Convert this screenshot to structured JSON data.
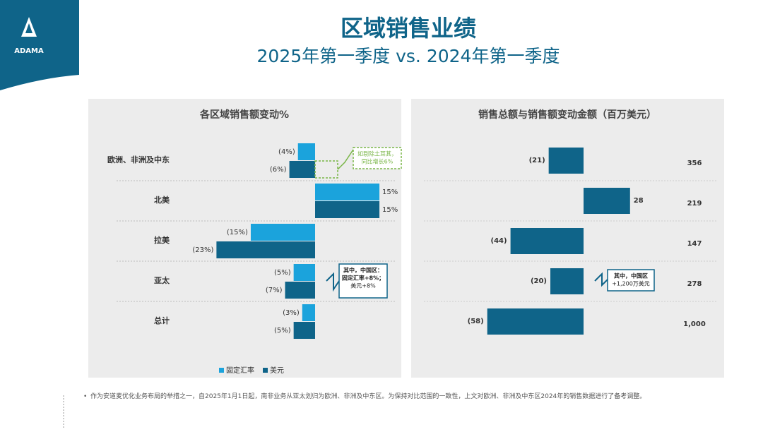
{
  "logo": "ADAMA",
  "header": {
    "title": "区域销售业绩",
    "subtitle": "2025年第一季度 vs. 2024年第一季度"
  },
  "footnote": "作为安道麦优化业务布局的举措之一，自2025年1月1日起，南非业务从亚太划归为欧洲、非洲及中东区。为保持对比范围的一致性，上文对欧洲、非洲及中东区2024年的销售数据进行了备考调整。",
  "chart_data": [
    {
      "type": "bar",
      "orientation": "horizontal",
      "title": "各区域销售额变动%",
      "categories": [
        "欧洲、非洲及中东",
        "北美",
        "拉美",
        "亚太",
        "总计"
      ],
      "series": [
        {
          "name": "固定汇率",
          "color": "#1ba3dc",
          "values": [
            -4,
            15,
            -15,
            -5,
            -3
          ],
          "value_labels": [
            "(4%)",
            "15%",
            "(15%)",
            "(5%)",
            "(3%)"
          ]
        },
        {
          "name": "美元",
          "color": "#0f6489",
          "values": [
            -6,
            15,
            -23,
            -7,
            -5
          ],
          "value_labels": [
            "(6%)",
            "15%",
            "(23%)",
            "(7%)",
            "(5%)"
          ]
        }
      ],
      "legend": "bottom",
      "annotations": [
        {
          "lines": [
            "如剔除土耳其，",
            "同比增长6%"
          ],
          "color": "#7ab648"
        },
        {
          "lines": [
            "其中，中国区：",
            "固定汇率+8%；",
            "美元+8%"
          ],
          "color": "#0f6489"
        }
      ]
    },
    {
      "type": "bar",
      "orientation": "horizontal",
      "title": "销售总额与销售额变动金额（百万美元）",
      "series": [
        {
          "name": "销售额变动金额",
          "color": "#0f6489",
          "values": [
            -21,
            28,
            -44,
            -20,
            -58
          ],
          "value_labels": [
            "(21)",
            "28",
            "(44)",
            "(20)",
            "(58)"
          ]
        }
      ],
      "totals": {
        "values": [
          356,
          219,
          147,
          278,
          1000
        ],
        "value_labels": [
          "356",
          "219",
          "147",
          "278",
          "1,000"
        ]
      },
      "annotations": [
        {
          "lines": [
            "其中，中国区",
            "+1,200万美元"
          ],
          "color": "#0f6489"
        }
      ]
    }
  ]
}
